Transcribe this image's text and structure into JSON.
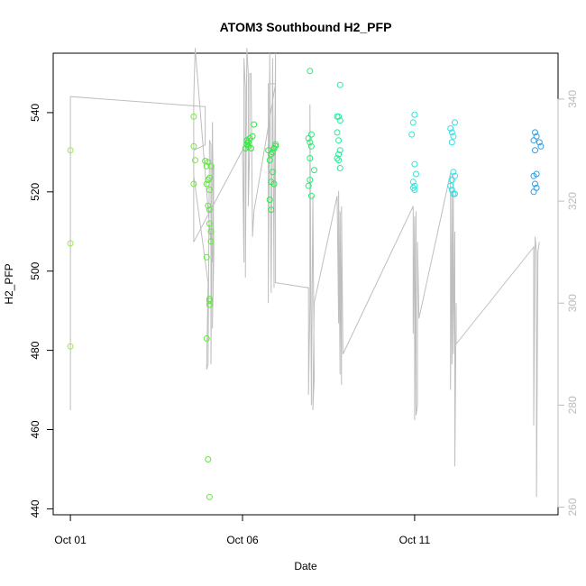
{
  "chart_data": {
    "type": "scatter",
    "title": "ATOM3 Southbound H2_PFP",
    "xlabel": "Date",
    "ylabel": "H2_PFP",
    "x_ticks": [
      "Oct 01",
      "Oct 06",
      "Oct 11"
    ],
    "y_ticks": [
      440,
      460,
      480,
      500,
      520,
      540
    ],
    "y2_ticks": [
      260,
      280,
      300,
      320,
      340
    ],
    "xlim": [
      "2016-09-30T12:00",
      "2016-10-15T04:00"
    ],
    "ylim": [
      438.5,
      555
    ],
    "y2lim": [
      258.5,
      349
    ],
    "colors": {
      "frame": "#000000",
      "secondary_line": "#bebebe",
      "secondary_axis": "#bbbbbb"
    },
    "series": [
      {
        "kind": "points",
        "axis": "left",
        "points": [
          [
            "2016-10-01T00:00",
            530.5,
            "#9de84e"
          ],
          [
            "2016-10-01T00:00",
            507,
            "#9de84e"
          ],
          [
            "2016-10-01T00:00",
            481,
            "#9de84e"
          ],
          [
            "2016-10-04T14:00",
            539,
            "#72ea3b"
          ],
          [
            "2016-10-04T14:00",
            531.5,
            "#72ea3b"
          ],
          [
            "2016-10-04T15:00",
            528,
            "#72ea3b"
          ],
          [
            "2016-10-04T14:00",
            522,
            "#72ea3b"
          ],
          [
            "2016-10-04T22:00",
            527.8,
            "#5ee83a"
          ],
          [
            "2016-10-05T00:00",
            527.5,
            "#5ee83a"
          ],
          [
            "2016-10-04T23:00",
            526.5,
            "#5ee83a"
          ],
          [
            "2016-10-05T02:00",
            526.5,
            "#5ee83a"
          ],
          [
            "2016-10-05T01:00",
            523.5,
            "#5ee83a"
          ],
          [
            "2016-10-05T00:00",
            523,
            "#5ee83a"
          ],
          [
            "2016-10-04T23:00",
            522,
            "#5ee83a"
          ],
          [
            "2016-10-05T01:00",
            520.5,
            "#5ee83a"
          ],
          [
            "2016-10-05T00:00",
            516.5,
            "#5ee83a"
          ],
          [
            "2016-10-05T01:00",
            515.5,
            "#5ee83a"
          ],
          [
            "2016-10-05T01:00",
            512,
            "#5ee83a"
          ],
          [
            "2016-10-05T02:00",
            510,
            "#5ee83a"
          ],
          [
            "2016-10-05T02:00",
            507.5,
            "#5ee83a"
          ],
          [
            "2016-10-04T23:00",
            503.5,
            "#5ee83a"
          ],
          [
            "2016-10-05T01:00",
            493,
            "#5ee83a"
          ],
          [
            "2016-10-05T01:00",
            492.5,
            "#5ee83a"
          ],
          [
            "2016-10-05T01:00",
            491.5,
            "#5ee83a"
          ],
          [
            "2016-10-04T23:00",
            483,
            "#5ee83a"
          ],
          [
            "2016-10-05T00:00",
            452.5,
            "#5ee83a"
          ],
          [
            "2016-10-05T01:00",
            443,
            "#5ee83a"
          ],
          [
            "2016-10-06T03:00",
            533,
            "#2ee83a"
          ],
          [
            "2016-10-06T03:00",
            532,
            "#2ee83a"
          ],
          [
            "2016-10-06T04:00",
            531.5,
            "#2ee83a"
          ],
          [
            "2016-10-06T02:00",
            531,
            "#2ee83a"
          ],
          [
            "2016-10-06T06:00",
            531,
            "#2ee83a"
          ],
          [
            "2016-10-06T05:00",
            533.5,
            "#2ee83a"
          ],
          [
            "2016-10-06T07:00",
            534,
            "#2ee83a"
          ],
          [
            "2016-10-06T08:00",
            537,
            "#2ee83a"
          ],
          [
            "2016-10-06T04:00",
            532.5,
            "#2ee83a"
          ],
          [
            "2016-10-06T18:00",
            530.5,
            "#2ee84a"
          ],
          [
            "2016-10-06T20:00",
            529.5,
            "#2ee84a"
          ],
          [
            "2016-10-06T22:00",
            531,
            "#2ee84a"
          ],
          [
            "2016-10-06T23:00",
            531.5,
            "#2ee84a"
          ],
          [
            "2016-10-06T23:00",
            532,
            "#2ee84a"
          ],
          [
            "2016-10-06T21:00",
            530,
            "#2ee84a"
          ],
          [
            "2016-10-06T19:00",
            528,
            "#2ee84a"
          ],
          [
            "2016-10-06T21:00",
            525,
            "#2ee84a"
          ],
          [
            "2016-10-06T20:00",
            522.5,
            "#2ee84a"
          ],
          [
            "2016-10-06T22:00",
            522,
            "#2ee84a"
          ],
          [
            "2016-10-06T19:00",
            518,
            "#2ee84a"
          ],
          [
            "2016-10-06T20:00",
            515.5,
            "#2ee84a"
          ],
          [
            "2016-10-07T23:00",
            550.5,
            "#2ee87a"
          ],
          [
            "2016-10-08T00:00",
            534.5,
            "#2ee87a"
          ],
          [
            "2016-10-07T22:00",
            533.5,
            "#2ee87a"
          ],
          [
            "2016-10-07T23:00",
            532.5,
            "#2ee87a"
          ],
          [
            "2016-10-08T00:00",
            531.5,
            "#2ee87a"
          ],
          [
            "2016-10-07T23:00",
            528.5,
            "#2ee87a"
          ],
          [
            "2016-10-08T02:00",
            525.5,
            "#2ee87a"
          ],
          [
            "2016-10-07T23:00",
            523,
            "#2ee87a"
          ],
          [
            "2016-10-07T22:00",
            521.5,
            "#2ee87a"
          ],
          [
            "2016-10-08T00:00",
            519,
            "#2ee87a"
          ],
          [
            "2016-10-08T20:00",
            547,
            "#2ee89a"
          ],
          [
            "2016-10-08T18:00",
            539,
            "#2ee89a"
          ],
          [
            "2016-10-08T19:00",
            539,
            "#2ee89a"
          ],
          [
            "2016-10-08T20:00",
            538,
            "#2ee89a"
          ],
          [
            "2016-10-08T18:00",
            535,
            "#2ee89a"
          ],
          [
            "2016-10-08T19:00",
            533,
            "#2ee89a"
          ],
          [
            "2016-10-08T20:00",
            530.5,
            "#2ee89a"
          ],
          [
            "2016-10-08T19:00",
            529.5,
            "#2ee89a"
          ],
          [
            "2016-10-08T18:00",
            528.5,
            "#2ee89a"
          ],
          [
            "2016-10-08T19:00",
            528,
            "#2ee89a"
          ],
          [
            "2016-10-08T20:00",
            526,
            "#2ee89a"
          ],
          [
            "2016-10-11T00:00",
            539.5,
            "#2ee8d8"
          ],
          [
            "2016-10-10T23:00",
            537.5,
            "#2ee8d8"
          ],
          [
            "2016-10-10T22:00",
            534.5,
            "#2ee8d8"
          ],
          [
            "2016-10-11T00:00",
            527,
            "#2ee8d8"
          ],
          [
            "2016-10-11T01:00",
            524.5,
            "#2ee8d8"
          ],
          [
            "2016-10-10T23:00",
            522.5,
            "#2ee8d8"
          ],
          [
            "2016-10-11T00:00",
            521.5,
            "#2ee8d8"
          ],
          [
            "2016-10-10T23:00",
            521,
            "#2ee8d8"
          ],
          [
            "2016-10-11T00:00",
            520.5,
            "#2ee8d8"
          ],
          [
            "2016-10-12T01:00",
            536,
            "#2ee0e8"
          ],
          [
            "2016-10-12T02:00",
            535,
            "#2ee0e8"
          ],
          [
            "2016-10-12T04:00",
            537.5,
            "#2ee0e8"
          ],
          [
            "2016-10-12T03:00",
            534,
            "#2ee0e8"
          ],
          [
            "2016-10-12T02:00",
            532.5,
            "#2ee0e8"
          ],
          [
            "2016-10-12T03:00",
            525,
            "#2ee0e8"
          ],
          [
            "2016-10-12T04:00",
            524,
            "#2ee0e8"
          ],
          [
            "2016-10-12T02:00",
            523,
            "#2ee0e8"
          ],
          [
            "2016-10-12T01:00",
            521.5,
            "#2ee0e8"
          ],
          [
            "2016-10-12T02:00",
            520.5,
            "#2ee0e8"
          ],
          [
            "2016-10-12T03:00",
            519.5,
            "#2ee0e8"
          ],
          [
            "2016-10-12T04:00",
            519.5,
            "#2ee0e8"
          ],
          [
            "2016-10-14T12:00",
            535,
            "#2e9ee8"
          ],
          [
            "2016-10-14T13:00",
            534,
            "#2e9ee8"
          ],
          [
            "2016-10-14T11:00",
            533,
            "#2e9ee8"
          ],
          [
            "2016-10-14T15:00",
            532.5,
            "#2e9ee8"
          ],
          [
            "2016-10-14T16:00",
            531.5,
            "#2e9ee8"
          ],
          [
            "2016-10-14T12:00",
            530.5,
            "#2e9ee8"
          ],
          [
            "2016-10-14T13:00",
            524.5,
            "#2e9ee8"
          ],
          [
            "2016-10-14T11:00",
            524,
            "#2e9ee8"
          ],
          [
            "2016-10-14T12:00",
            522,
            "#2e9ee8"
          ],
          [
            "2016-10-14T13:00",
            521,
            "#2e9ee8"
          ],
          [
            "2016-10-14T11:00",
            520,
            "#2e9ee8"
          ]
        ]
      },
      {
        "kind": "line",
        "axis": "right",
        "color": "#bebebe",
        "points": [
          [
            "2016-10-01T00:00",
            279
          ],
          [
            "2016-10-01T00:00",
            340.5
          ],
          [
            "2016-10-04T22:00",
            338.5
          ],
          [
            "2016-10-04T22:00",
            331
          ],
          [
            "2016-10-04T14:00",
            330
          ],
          [
            "2016-10-04T14:00",
            325
          ],
          [
            "2016-10-05T00:00",
            304
          ],
          [
            "2016-10-04T23:00",
            287
          ],
          [
            "2016-10-05T00:00",
            288
          ],
          [
            "2016-10-05T01:00",
            332
          ],
          [
            "2016-10-05T02:00",
            331
          ],
          [
            "2016-10-05T02:00",
            288
          ],
          [
            "2016-10-05T03:00",
            335.5
          ],
          [
            "2016-10-05T04:00",
            310
          ],
          [
            "2016-10-05T03:00",
            295
          ],
          [
            "2016-10-05T04:00",
            327
          ],
          [
            "2016-10-05T03:00",
            308
          ],
          [
            "2016-10-04T15:00",
            350
          ],
          [
            "2016-10-04T14:00",
            340
          ],
          [
            "2016-10-04T14:00",
            312
          ],
          [
            "2016-10-06T00:00",
            330
          ],
          [
            "2016-10-06T01:00",
            308
          ],
          [
            "2016-10-06T01:00",
            348
          ],
          [
            "2016-10-06T02:00",
            342
          ],
          [
            "2016-10-06T02:00",
            305
          ],
          [
            "2016-10-06T03:00",
            350
          ],
          [
            "2016-10-06T04:00",
            345
          ],
          [
            "2016-10-06T04:00",
            319
          ],
          [
            "2016-10-06T05:00",
            331
          ],
          [
            "2016-10-06T05:00",
            345
          ],
          [
            "2016-10-06T06:00",
            345
          ],
          [
            "2016-10-06T07:00",
            313
          ],
          [
            "2016-10-06T08:00",
            318
          ],
          [
            "2016-10-06T23:00",
            343
          ],
          [
            "2016-10-06T18:00",
            343
          ],
          [
            "2016-10-06T18:00",
            300
          ],
          [
            "2016-10-06T19:00",
            349
          ],
          [
            "2016-10-06T20:00",
            302
          ],
          [
            "2016-10-06T21:00",
            348
          ],
          [
            "2016-10-06T22:00",
            303
          ],
          [
            "2016-10-06T22:00",
            313
          ],
          [
            "2016-10-06T23:00",
            349
          ],
          [
            "2016-10-06T23:00",
            304
          ],
          [
            "2016-10-07T22:00",
            303
          ],
          [
            "2016-10-07T22:00",
            282
          ],
          [
            "2016-10-07T23:00",
            300
          ],
          [
            "2016-10-07T23:00",
            339
          ],
          [
            "2016-10-08T00:00",
            280
          ],
          [
            "2016-10-08T01:00",
            321
          ],
          [
            "2016-10-08T02:00",
            285
          ],
          [
            "2016-10-08T01:00",
            279
          ],
          [
            "2016-10-08T02:00",
            300
          ],
          [
            "2016-10-08T18:00",
            321
          ],
          [
            "2016-10-08T19:00",
            296
          ],
          [
            "2016-10-08T19:00",
            322
          ],
          [
            "2016-10-08T20:00",
            286
          ],
          [
            "2016-10-08T20:00",
            318
          ],
          [
            "2016-10-08T21:00",
            284
          ],
          [
            "2016-10-08T21:00",
            319
          ],
          [
            "2016-10-08T22:00",
            290
          ],
          [
            "2016-10-10T23:00",
            319
          ],
          [
            "2016-10-10T23:00",
            294
          ],
          [
            "2016-10-11T00:00",
            317
          ],
          [
            "2016-10-11T00:00",
            277
          ],
          [
            "2016-10-11T01:00",
            318
          ],
          [
            "2016-10-11T01:00",
            278
          ],
          [
            "2016-10-11T02:00",
            280
          ],
          [
            "2016-10-11T02:00",
            312
          ],
          [
            "2016-10-11T03:00",
            297
          ],
          [
            "2016-10-12T01:00",
            325.5
          ],
          [
            "2016-10-12T01:00",
            283
          ],
          [
            "2016-10-12T02:00",
            322
          ],
          [
            "2016-10-12T02:00",
            288
          ],
          [
            "2016-10-12T03:00",
            325
          ],
          [
            "2016-10-12T03:00",
            290
          ],
          [
            "2016-10-12T04:00",
            314
          ],
          [
            "2016-10-12T04:00",
            268
          ],
          [
            "2016-10-12T05:00",
            300
          ],
          [
            "2016-10-12T05:00",
            292
          ],
          [
            "2016-10-14T11:00",
            311
          ],
          [
            "2016-10-14T11:00",
            276
          ],
          [
            "2016-10-14T12:00",
            313
          ],
          [
            "2016-10-14T13:00",
            310
          ],
          [
            "2016-10-14T13:00",
            262
          ],
          [
            "2016-10-14T14:00",
            310
          ],
          [
            "2016-10-14T15:00",
            312
          ]
        ]
      }
    ]
  }
}
